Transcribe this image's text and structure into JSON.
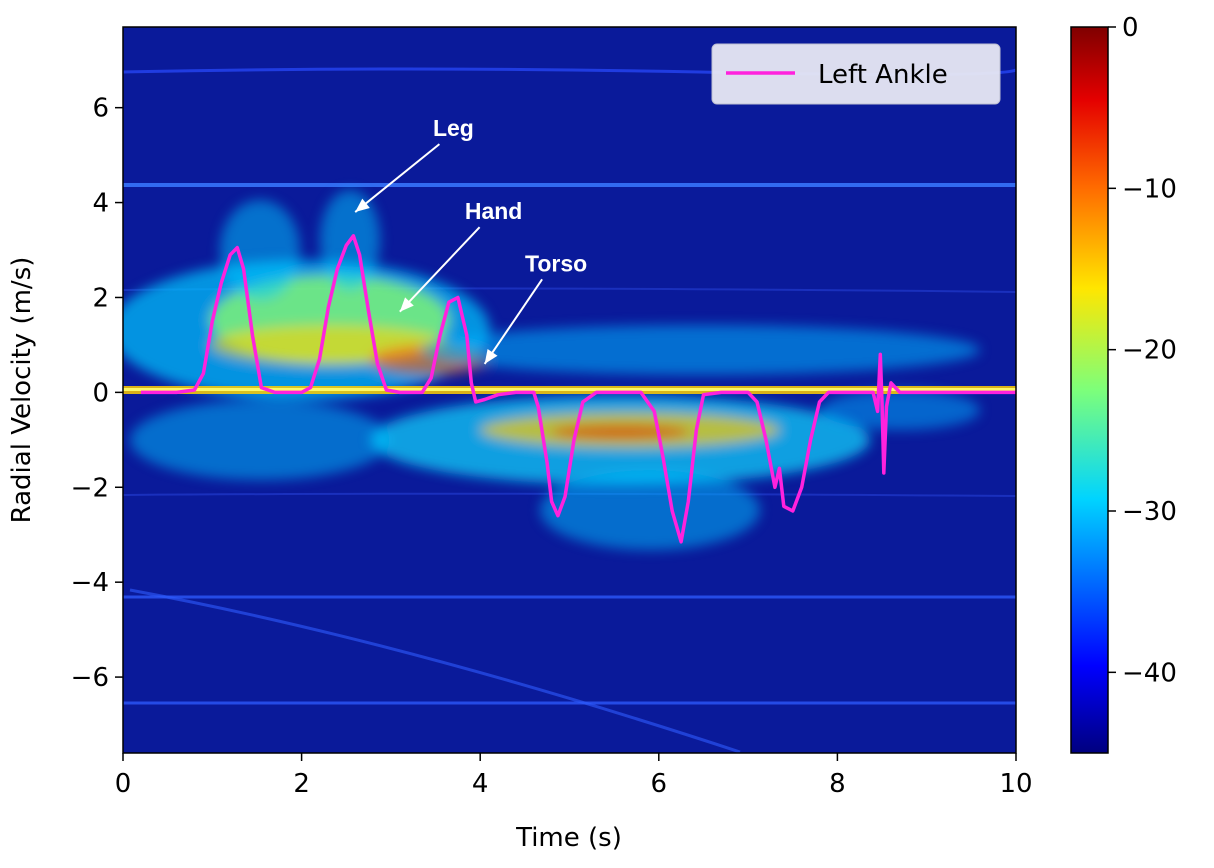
{
  "chart_data": {
    "type": "heatmap",
    "title": "",
    "xlabel": "Time (s)",
    "ylabel": "Radial Velocity (m/s)",
    "xlim": [
      0,
      10
    ],
    "ylim": [
      -7.6,
      7.7
    ],
    "xticks": [
      0,
      2,
      4,
      6,
      8,
      10
    ],
    "yticks": [
      -6,
      -4,
      -2,
      0,
      2,
      4,
      6
    ],
    "colormap": "jet",
    "colorbar": {
      "range": [
        -45,
        0
      ],
      "ticks": [
        0,
        -10,
        -20,
        -30,
        -40
      ]
    },
    "grid": false,
    "legend": {
      "position": "top-right",
      "entries": [
        "Left Ankle"
      ]
    },
    "series": [
      {
        "name": "Left Ankle",
        "color": "#ff22dd",
        "points": [
          [
            0.2,
            0
          ],
          [
            0.6,
            0
          ],
          [
            0.8,
            0.05
          ],
          [
            0.9,
            0.4
          ],
          [
            1.0,
            1.5
          ],
          [
            1.1,
            2.3
          ],
          [
            1.2,
            2.9
          ],
          [
            1.28,
            3.05
          ],
          [
            1.35,
            2.6
          ],
          [
            1.45,
            1.2
          ],
          [
            1.55,
            0.1
          ],
          [
            1.7,
            0
          ],
          [
            2.0,
            0
          ],
          [
            2.1,
            0.1
          ],
          [
            2.2,
            0.7
          ],
          [
            2.3,
            1.8
          ],
          [
            2.4,
            2.6
          ],
          [
            2.5,
            3.1
          ],
          [
            2.58,
            3.3
          ],
          [
            2.65,
            2.9
          ],
          [
            2.75,
            1.7
          ],
          [
            2.85,
            0.6
          ],
          [
            2.95,
            0.05
          ],
          [
            3.1,
            0
          ],
          [
            3.35,
            0
          ],
          [
            3.45,
            0.3
          ],
          [
            3.55,
            1.2
          ],
          [
            3.65,
            1.9
          ],
          [
            3.75,
            2.0
          ],
          [
            3.85,
            1.2
          ],
          [
            3.9,
            0.2
          ],
          [
            3.95,
            -0.2
          ],
          [
            4.05,
            -0.15
          ],
          [
            4.2,
            -0.05
          ],
          [
            4.4,
            0
          ],
          [
            4.6,
            0
          ],
          [
            4.65,
            -0.3
          ],
          [
            4.75,
            -1.5
          ],
          [
            4.8,
            -2.3
          ],
          [
            4.87,
            -2.6
          ],
          [
            4.95,
            -2.2
          ],
          [
            5.05,
            -1.0
          ],
          [
            5.15,
            -0.2
          ],
          [
            5.3,
            0
          ],
          [
            5.8,
            0
          ],
          [
            5.95,
            -0.4
          ],
          [
            6.05,
            -1.4
          ],
          [
            6.15,
            -2.5
          ],
          [
            6.25,
            -3.15
          ],
          [
            6.33,
            -2.3
          ],
          [
            6.42,
            -0.8
          ],
          [
            6.5,
            -0.05
          ],
          [
            6.7,
            0
          ],
          [
            7.0,
            0
          ],
          [
            7.1,
            -0.2
          ],
          [
            7.2,
            -1.0
          ],
          [
            7.3,
            -2.0
          ],
          [
            7.35,
            -1.6
          ],
          [
            7.4,
            -2.4
          ],
          [
            7.5,
            -2.5
          ],
          [
            7.6,
            -2.0
          ],
          [
            7.7,
            -1.0
          ],
          [
            7.8,
            -0.2
          ],
          [
            7.9,
            0
          ],
          [
            8.4,
            0
          ],
          [
            8.45,
            -0.4
          ],
          [
            8.48,
            0.8
          ],
          [
            8.5,
            -0.2
          ],
          [
            8.52,
            -1.7
          ],
          [
            8.55,
            -0.3
          ],
          [
            8.6,
            0.2
          ],
          [
            8.7,
            0
          ],
          [
            10.0,
            0
          ]
        ]
      }
    ],
    "annotations": [
      {
        "text": "Leg",
        "text_x": 3.7,
        "text_y": 5.4,
        "arrow_x": 2.6,
        "arrow_y": 3.8
      },
      {
        "text": "Hand",
        "text_x": 4.15,
        "text_y": 3.65,
        "arrow_x": 3.1,
        "arrow_y": 1.7
      },
      {
        "text": "Torso",
        "text_x": 4.85,
        "text_y": 2.55,
        "arrow_x": 4.05,
        "arrow_y": 0.6
      }
    ]
  }
}
